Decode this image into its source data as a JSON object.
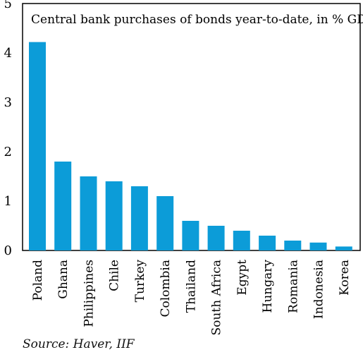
{
  "chart_data": {
    "type": "bar",
    "title": "Central bank purchases of bonds year-to-date, in % GDP",
    "xlabel": "",
    "ylabel": "",
    "ylim": [
      0,
      5
    ],
    "yticks": [
      0,
      1,
      2,
      3,
      4,
      5
    ],
    "categories": [
      "Poland",
      "Ghana",
      "Philippines",
      "Chile",
      "Turkey",
      "Colombia",
      "Thailand",
      "South Africa",
      "Egypt",
      "Hungary",
      "Romania",
      "Indonesia",
      "Korea"
    ],
    "values": [
      4.22,
      1.8,
      1.5,
      1.4,
      1.3,
      1.1,
      0.6,
      0.5,
      0.4,
      0.3,
      0.2,
      0.16,
      0.08
    ],
    "bar_color": "#0c9cd8",
    "grid": false,
    "legend": "none"
  },
  "source": "Source: Haver, IIF"
}
